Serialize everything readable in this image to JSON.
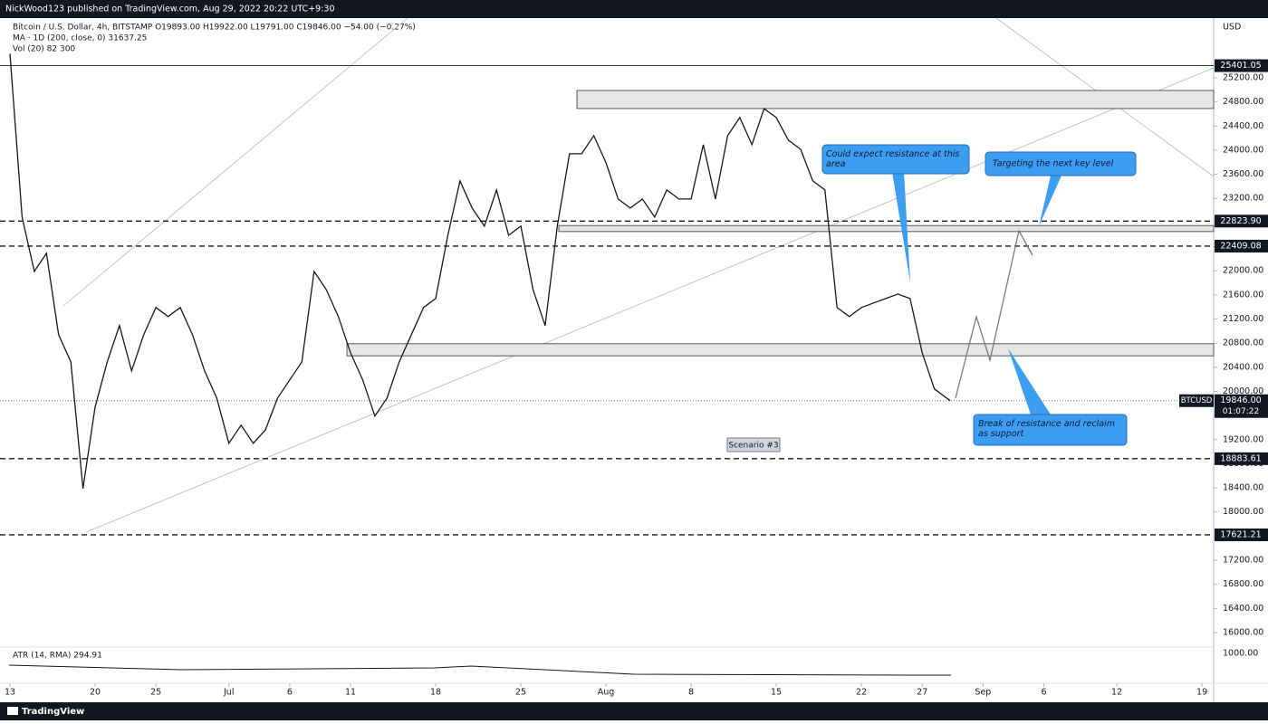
{
  "header": {
    "publisher": "NickWood123 published on TradingView.com, Aug 29, 2022 20:22 UTC+9:30",
    "brand": "TradingView"
  },
  "chart_data": {
    "type": "line",
    "title": "Bitcoin / U.S. Dollar, 4h, BITSTAMP  O19893.00  H19922.00  L19791.00  C19846.00  −54.00 (−0.27%)",
    "indicators": [
      "MA · 1D (200, close, 0)  31637.25",
      "Vol (20)  82  300",
      "ATR (14, RMA)  294.91"
    ],
    "y_axis_unit": "USD",
    "x": [
      0,
      1,
      2,
      3,
      4,
      5,
      6,
      7,
      8,
      9,
      10,
      11,
      12,
      13,
      14,
      15,
      16,
      17,
      18,
      19,
      20,
      21,
      22,
      23,
      24,
      25,
      26,
      27,
      28,
      29,
      30,
      31,
      32,
      33,
      34,
      35,
      36,
      37,
      38,
      39,
      40,
      41,
      42,
      43,
      44,
      45,
      46,
      47,
      48,
      49,
      50,
      51,
      52,
      53,
      54,
      55,
      56,
      57,
      58,
      59,
      60,
      61,
      62,
      63,
      64,
      65,
      66,
      67,
      68,
      69,
      70,
      71,
      72,
      73,
      74,
      75,
      76,
      77,
      77.3
    ],
    "series": [
      {
        "name": "BTCUSD",
        "color": "#131722",
        "values": [
          25600,
          22890,
          21990,
          22290,
          20940,
          20490,
          18390,
          19740,
          20490,
          21090,
          20340,
          20940,
          21390,
          21240,
          21390,
          20940,
          20340,
          19890,
          19140,
          19440,
          19140,
          19360,
          19890,
          20190,
          20490,
          21990,
          21690,
          21240,
          20640,
          20190,
          19590,
          19890,
          20490,
          20940,
          21390,
          21540,
          22590,
          23490,
          23040,
          22740,
          23340,
          22590,
          22740,
          21690,
          21090,
          22740,
          23940,
          23940,
          24240,
          23790,
          23190,
          23040,
          23190,
          22890,
          23340,
          23190,
          23190,
          24090,
          23190,
          24240,
          24540,
          24090,
          24690,
          24540,
          24165,
          24015,
          23490,
          23340,
          21390,
          21240,
          21390,
          21465,
          21540,
          21615,
          21540,
          20640,
          20040,
          19890,
          19846
        ]
      }
    ],
    "last_price": {
      "value": 19846,
      "label": "19846.00"
    },
    "countdown": "01:07:22",
    "levels": [
      25401.05,
      {
        "value": 22823.9,
        "label": "22823.90"
      },
      22409.08,
      18883.61,
      17621.21
    ],
    "level_dashed": [
      false,
      true,
      true,
      true,
      true
    ],
    "zones": [
      [
        24690,
        24990
      ],
      [
        22650,
        22750
      ],
      [
        20590,
        20790
      ]
    ],
    "xlim": [
      -0.82,
      98.96
    ],
    "xticks": [
      {
        "value": 0,
        "label": "13"
      },
      {
        "value": 7,
        "label": "20"
      },
      {
        "value": 12,
        "label": "25"
      },
      {
        "value": 18,
        "label": "Jul"
      },
      {
        "value": 23,
        "label": "6"
      },
      {
        "value": 28,
        "label": "11"
      },
      {
        "value": 35,
        "label": "18"
      },
      {
        "value": 42,
        "label": "25"
      },
      {
        "value": 49,
        "label": "Aug"
      },
      {
        "value": 56,
        "label": "8"
      },
      {
        "value": 63,
        "label": "15"
      },
      {
        "value": 70,
        "label": "22"
      },
      {
        "value": 75,
        "label": "27"
      },
      {
        "value": 80,
        "label": "Sep"
      },
      {
        "value": 85,
        "label": "6"
      },
      {
        "value": 91,
        "label": "12"
      },
      {
        "value": 98,
        "label": "19"
      }
    ],
    "ylim": [
      15760,
      26190
    ],
    "yticks": [
      {
        "value": 16000,
        "label": "16000.00"
      },
      {
        "value": 16400,
        "label": "16400.00"
      },
      {
        "value": 16800,
        "label": "16800.00"
      },
      {
        "value": 17200,
        "label": "17200.00"
      },
      {
        "value": 17600,
        "label": "17600.00"
      },
      {
        "value": 18000,
        "label": "18000.00"
      },
      {
        "value": 18400,
        "label": "18400.00"
      },
      {
        "value": 18800,
        "label": "18800.00"
      },
      {
        "value": 19200,
        "label": "19200.00"
      },
      {
        "value": 19600,
        "label": "19600.00"
      },
      {
        "value": 20000,
        "label": "20000.00"
      },
      {
        "value": 20400,
        "label": "20400.00"
      },
      {
        "value": 20800,
        "label": "20800.00"
      },
      {
        "value": 21200,
        "label": "21200.00"
      },
      {
        "value": 21600,
        "label": "21600.00"
      },
      {
        "value": 22000,
        "label": "22000.00"
      },
      {
        "value": 22400,
        "label": "22400.00"
      },
      {
        "value": 22800,
        "label": "22800.00"
      },
      {
        "value": 23200,
        "label": "23200.00"
      },
      {
        "value": 23600,
        "label": "23600.00"
      },
      {
        "value": 24000,
        "label": "24000.00"
      },
      {
        "value": 24400,
        "label": "24400.00"
      },
      {
        "value": 24800,
        "label": "24800.00"
      },
      {
        "value": 25200,
        "label": "25200.00"
      }
    ],
    "atr_tick": "1000.00",
    "annotations": {
      "scenario": "Scenario #3",
      "callout_1": "Could expect resistance at this area",
      "callout_2": "Targeting the next key level",
      "callout_3": "Break of resistance and reclaim as support"
    }
  }
}
